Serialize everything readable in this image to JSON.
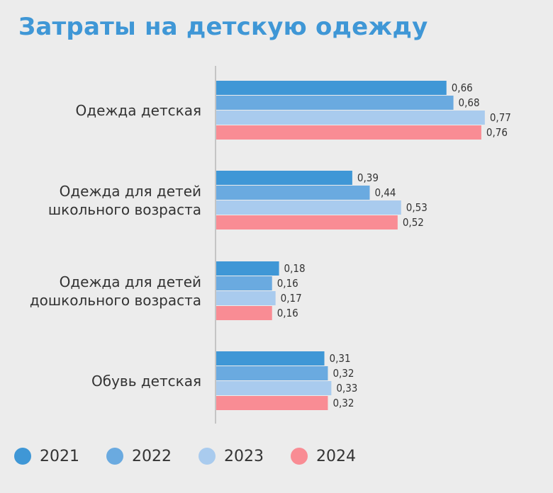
{
  "title": "Затраты на детскую одежду",
  "chart_data": {
    "type": "bar",
    "orientation": "horizontal",
    "title": "Затраты на детскую одежду",
    "xlabel": "",
    "ylabel": "",
    "xlim": [
      0,
      0.85
    ],
    "grid": false,
    "legend_position": "bottom",
    "categories": [
      [
        "Одежда детская"
      ],
      [
        "Одежда для детей",
        "школьного возраста"
      ],
      [
        "Одежда для детей",
        "дошкольного возраста"
      ],
      [
        "Обувь детская"
      ]
    ],
    "series": [
      {
        "name": "2021",
        "color": "#3f97d6",
        "values": [
          0.66,
          0.39,
          0.18,
          0.31
        ],
        "labels": [
          "0,66",
          "0,39",
          "0,18",
          "0,31"
        ]
      },
      {
        "name": "2022",
        "color": "#6aaae0",
        "values": [
          0.68,
          0.44,
          0.16,
          0.32
        ],
        "labels": [
          "0,68",
          "0,44",
          "0,16",
          "0,32"
        ]
      },
      {
        "name": "2023",
        "color": "#a9cbee",
        "values": [
          0.77,
          0.53,
          0.17,
          0.33
        ],
        "labels": [
          "0,77",
          "0,53",
          "0,17",
          "0,33"
        ]
      },
      {
        "name": "2024",
        "color": "#f98c94",
        "values": [
          0.76,
          0.52,
          0.16,
          0.32
        ],
        "labels": [
          "0,76",
          "0,52",
          "0,16",
          "0,32"
        ]
      }
    ]
  }
}
